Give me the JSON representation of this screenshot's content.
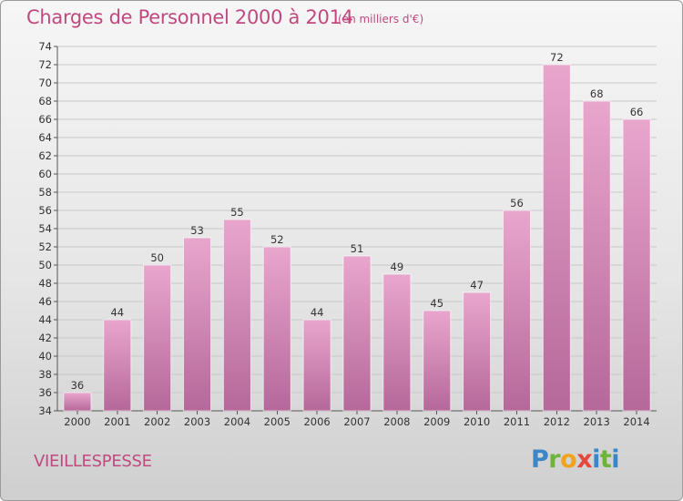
{
  "header": {
    "title": "Charges de Personnel 2000 à 2014",
    "subtitle": "(en milliers d'€)"
  },
  "footer": {
    "commune": "VIEILLESPESSE",
    "logo_letters": [
      "P",
      "r",
      "o",
      "x",
      "i",
      "t",
      "i"
    ]
  },
  "colors": {
    "accent": "#c0497f",
    "bar_top": "#e9a6cd",
    "bar_bottom": "#b5689a"
  },
  "chart_data": {
    "type": "bar",
    "title": "Charges de Personnel 2000 à 2014",
    "subtitle": "(en milliers d'€)",
    "categories": [
      "2000",
      "2001",
      "2002",
      "2003",
      "2004",
      "2005",
      "2006",
      "2007",
      "2008",
      "2009",
      "2010",
      "2011",
      "2012",
      "2013",
      "2014"
    ],
    "values": [
      36,
      44,
      50,
      53,
      55,
      52,
      44,
      51,
      49,
      45,
      47,
      56,
      72,
      68,
      66
    ],
    "ylim": [
      34,
      74
    ],
    "yticks": [
      34,
      36,
      38,
      40,
      42,
      44,
      46,
      48,
      50,
      52,
      54,
      56,
      58,
      60,
      62,
      64,
      66,
      68,
      70,
      72,
      74
    ],
    "grid": true,
    "xlabel": "",
    "ylabel": ""
  }
}
